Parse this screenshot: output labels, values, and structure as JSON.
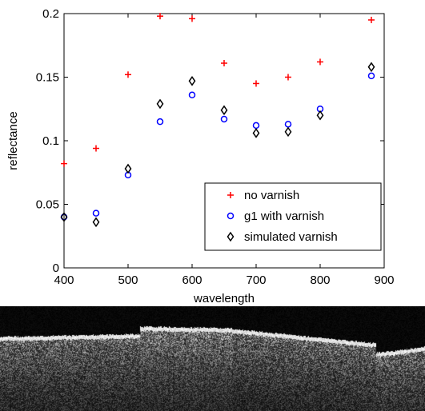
{
  "chart_data": {
    "type": "scatter",
    "xlabel": "wavelength",
    "ylabel": "reflectance",
    "xlim": [
      400,
      900
    ],
    "ylim": [
      0,
      0.2
    ],
    "xticks": [
      "400",
      "500",
      "600",
      "700",
      "800",
      "900"
    ],
    "yticks": [
      "0",
      "0.05",
      "0.1",
      "0.15",
      "0.2"
    ],
    "legend_position": "bottom-right",
    "grid": false,
    "series": [
      {
        "name": "no varnish",
        "marker": "plus",
        "color": "#ff0000",
        "x": [
          400,
          450,
          500,
          550,
          600,
          650,
          700,
          750,
          800,
          880
        ],
        "y": [
          0.082,
          0.094,
          0.152,
          0.198,
          0.196,
          0.161,
          0.145,
          0.15,
          0.162,
          0.195
        ]
      },
      {
        "name": "g1 with varnish",
        "marker": "circle",
        "color": "#0000ff",
        "x": [
          400,
          450,
          500,
          550,
          600,
          650,
          700,
          750,
          800,
          880
        ],
        "y": [
          0.04,
          0.043,
          0.073,
          0.115,
          0.136,
          0.117,
          0.112,
          0.113,
          0.125,
          0.151
        ]
      },
      {
        "name": "simulated varnish",
        "marker": "diamond",
        "color": "#000000",
        "x": [
          400,
          450,
          500,
          550,
          600,
          650,
          700,
          750,
          800,
          880
        ],
        "y": [
          0.04,
          0.036,
          0.078,
          0.129,
          0.147,
          0.124,
          0.106,
          0.107,
          0.12,
          0.158
        ]
      }
    ]
  },
  "scan_image": {
    "description_type": "grayscale cross-section scan",
    "colors": {
      "background": "#000000",
      "bright": "#ffffff"
    }
  }
}
